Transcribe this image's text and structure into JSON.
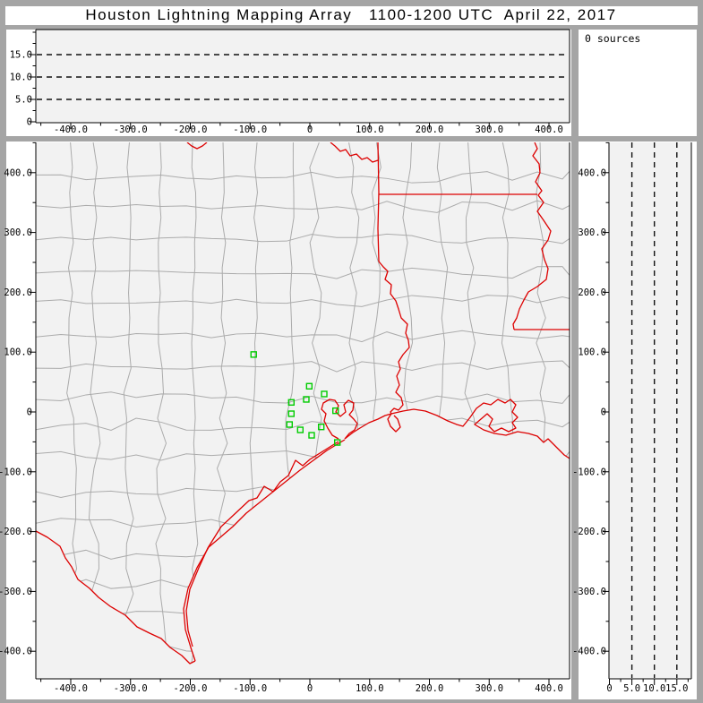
{
  "window": {
    "title": "Houston Lightning Mapping Array   1100-1200 UTC  April 22, 2017"
  },
  "status": {
    "sources_label": "0 sources"
  },
  "colors": {
    "frame": "#a5a5a5",
    "panel_white": "#ffffff",
    "plot_bg": "#f2f2f2",
    "axis": "#000000",
    "county_line": "#ababab",
    "state_border": "#dd0000",
    "station_marker": "#00cc00",
    "grid_dash": "#111111"
  },
  "chart_data": [
    {
      "id": "ew-altitude-panel",
      "type": "scatter",
      "position": "top",
      "description": "altitude (km) vs east-west distance (km), empty - 0 sources",
      "x_tick_values": [
        -400,
        -300,
        -200,
        -100,
        0,
        100,
        200,
        300,
        400
      ],
      "x_tick_labels": [
        "-400.0",
        "-300.0",
        "-200.0",
        "-100.0",
        "0",
        "100.0",
        "200.0",
        "300.0",
        "400.0"
      ],
      "y_tick_values": [
        0,
        5,
        10,
        15
      ],
      "y_tick_labels": [
        "0",
        "5.0",
        "10.0",
        "15.0"
      ],
      "xlim": [
        -458,
        434
      ],
      "ylim": [
        0,
        20.6
      ],
      "minor_x_step": 50,
      "minor_y_step": 2.5,
      "gridlines_y_dashed": [
        5,
        10,
        15
      ],
      "points": []
    },
    {
      "id": "plan-view-map",
      "type": "scatter",
      "position": "main",
      "description": "plan view map, km east-west vs km north-south centered on Houston LMA",
      "x_tick_values": [
        -400,
        -300,
        -200,
        -100,
        0,
        100,
        200,
        300,
        400
      ],
      "x_tick_labels": [
        "-400.0",
        "-300.0",
        "-200.0",
        "-100.0",
        "0",
        "100.0",
        "200.0",
        "300.0",
        "400.0"
      ],
      "y_tick_values": [
        400,
        300,
        200,
        100,
        0,
        -100,
        -200,
        -300,
        -400
      ],
      "y_tick_labels": [
        "400.0",
        "300.0",
        "200.0",
        "100.0",
        "0",
        "-100.0",
        "-200.0",
        "-300.0",
        "-400.0"
      ],
      "xlim": [
        -458,
        434
      ],
      "ylim": [
        -448,
        451
      ],
      "minor_x_step": 50,
      "minor_y_step": 50,
      "marker": "open-green-square",
      "stations_km": [
        [
          -94,
          96
        ],
        [
          -1,
          43
        ],
        [
          24,
          30
        ],
        [
          -6,
          21
        ],
        [
          -31,
          16
        ],
        [
          43,
          2
        ],
        [
          -31,
          -3
        ],
        [
          -34,
          -21
        ],
        [
          19,
          -25
        ],
        [
          -16,
          -30
        ],
        [
          3,
          -39
        ],
        [
          46,
          -51
        ]
      ],
      "overlays": [
        "county-boundaries-gray",
        "state-borders-and-coastline-red"
      ],
      "lightning_points": []
    },
    {
      "id": "ns-altitude-panel",
      "type": "scatter",
      "position": "right",
      "description": "north-south distance (km) vs altitude (km), empty - 0 sources",
      "x_tick_values": [
        0,
        5,
        10,
        15
      ],
      "x_tick_labels": [
        "0",
        "5.0",
        "10.0",
        "15.0"
      ],
      "y_tick_values": [
        400,
        300,
        200,
        100,
        0,
        -100,
        -200,
        -300,
        -400
      ],
      "y_tick_labels": [
        "400.0",
        "300.0",
        "200.0",
        "100.0",
        "0",
        "-100.0",
        "-200.0",
        "-300.0",
        "-400.0"
      ],
      "xlim": [
        0,
        18.2
      ],
      "ylim": [
        -448,
        451
      ],
      "minor_x_step": 2.5,
      "minor_y_step": 50,
      "gridlines_x_dashed": [
        5,
        10,
        15
      ],
      "points": []
    }
  ],
  "map_geometry": {
    "red_paths": [
      {
        "name": "red-river-tx-ok-west",
        "points": [
          [
            209,
            159
          ],
          [
            214,
            163
          ],
          [
            220,
            166
          ],
          [
            226,
            163
          ],
          [
            231,
            159
          ]
        ]
      },
      {
        "name": "red-river-tx-ok-east",
        "points": [
          [
            369,
            159
          ],
          [
            374,
            163
          ],
          [
            380,
            169
          ],
          [
            386,
            167
          ],
          [
            391,
            174
          ],
          [
            398,
            172
          ],
          [
            404,
            178
          ],
          [
            410,
            176
          ],
          [
            416,
            181
          ],
          [
            422,
            179
          ]
        ]
      },
      {
        "name": "tx-ar-border",
        "points": [
          [
            422,
            159
          ],
          [
            423,
            215
          ],
          [
            422,
            255
          ],
          [
            423,
            292
          ]
        ]
      },
      {
        "name": "sabine-river-tx-la",
        "points": [
          [
            423,
            292
          ],
          [
            428,
            298
          ],
          [
            433,
            303
          ],
          [
            430,
            312
          ],
          [
            437,
            318
          ],
          [
            436,
            328
          ],
          [
            442,
            336
          ],
          [
            445,
            345
          ],
          [
            448,
            355
          ],
          [
            455,
            362
          ],
          [
            453,
            372
          ],
          [
            456,
            380
          ],
          [
            457,
            388
          ],
          [
            450,
            396
          ],
          [
            445,
            404
          ],
          [
            447,
            412
          ],
          [
            443,
            420
          ],
          [
            446,
            430
          ],
          [
            442,
            438
          ],
          [
            448,
            444
          ],
          [
            450,
            452
          ],
          [
            445,
            458
          ],
          [
            440,
            456
          ],
          [
            436,
            460
          ],
          [
            437,
            462
          ]
        ]
      },
      {
        "name": "ar-la-border",
        "points": [
          [
            423,
            217
          ],
          [
            600,
            217
          ]
        ]
      },
      {
        "name": "mississippi-river-border",
        "points": [
          [
            597,
            159
          ],
          [
            600,
            166
          ],
          [
            595,
            174
          ],
          [
            602,
            183
          ],
          [
            603,
            193
          ],
          [
            598,
            203
          ],
          [
            605,
            213
          ],
          [
            601,
            218
          ],
          [
            607,
            226
          ],
          [
            600,
            236
          ],
          [
            607,
            246
          ],
          [
            615,
            258
          ],
          [
            612,
            268
          ],
          [
            605,
            278
          ],
          [
            608,
            290
          ],
          [
            612,
            300
          ],
          [
            610,
            312
          ],
          [
            600,
            320
          ],
          [
            590,
            326
          ],
          [
            585,
            335
          ],
          [
            580,
            345
          ],
          [
            577,
            355
          ],
          [
            573,
            362
          ],
          [
            574,
            368
          ]
        ]
      },
      {
        "name": "la-ms-border",
        "points": [
          [
            574,
            368
          ],
          [
            636,
            368
          ]
        ]
      },
      {
        "name": "gulf-coast-east",
        "points": [
          [
            385,
            490
          ],
          [
            394,
            483
          ],
          [
            402,
            478
          ],
          [
            412,
            472
          ],
          [
            422,
            468
          ],
          [
            430,
            464
          ],
          [
            437,
            462
          ],
          [
            450,
            459
          ],
          [
            462,
            457
          ],
          [
            475,
            459
          ],
          [
            488,
            464
          ],
          [
            500,
            470
          ],
          [
            510,
            474
          ],
          [
            517,
            476
          ],
          [
            525,
            466
          ],
          [
            532,
            456
          ],
          [
            540,
            450
          ],
          [
            548,
            452
          ],
          [
            556,
            446
          ],
          [
            564,
            450
          ],
          [
            570,
            446
          ],
          [
            576,
            452
          ],
          [
            572,
            460
          ],
          [
            578,
            466
          ],
          [
            572,
            472
          ],
          [
            576,
            478
          ],
          [
            568,
            482
          ],
          [
            560,
            478
          ],
          [
            552,
            482
          ],
          [
            546,
            476
          ],
          [
            550,
            468
          ],
          [
            544,
            462
          ],
          [
            537,
            468
          ],
          [
            530,
            474
          ],
          [
            540,
            480
          ],
          [
            552,
            484
          ],
          [
            565,
            486
          ],
          [
            578,
            482
          ],
          [
            590,
            484
          ],
          [
            600,
            487
          ],
          [
            607,
            494
          ],
          [
            612,
            490
          ],
          [
            618,
            496
          ],
          [
            625,
            503
          ],
          [
            630,
            508
          ],
          [
            636,
            512
          ]
        ]
      },
      {
        "name": "galveston-bay",
        "points": [
          [
            385,
            490
          ],
          [
            390,
            484
          ],
          [
            396,
            480
          ],
          [
            399,
            473
          ],
          [
            395,
            468
          ],
          [
            390,
            463
          ],
          [
            394,
            458
          ],
          [
            395,
            450
          ],
          [
            389,
            447
          ],
          [
            384,
            452
          ],
          [
            386,
            460
          ],
          [
            380,
            465
          ],
          [
            375,
            460
          ],
          [
            378,
            453
          ],
          [
            374,
            447
          ],
          [
            368,
            446
          ],
          [
            361,
            450
          ],
          [
            359,
            457
          ],
          [
            364,
            462
          ],
          [
            362,
            470
          ],
          [
            366,
            478
          ],
          [
            371,
            486
          ],
          [
            378,
            490
          ]
        ]
      },
      {
        "name": "barrier-island-coast",
        "points": [
          [
            385,
            491
          ],
          [
            380,
            494
          ],
          [
            365,
            503
          ],
          [
            350,
            514
          ],
          [
            335,
            525
          ],
          [
            320,
            537
          ],
          [
            305,
            549
          ],
          [
            290,
            561
          ],
          [
            275,
            573
          ],
          [
            260,
            588
          ],
          [
            246,
            600
          ],
          [
            233,
            611
          ],
          [
            220,
            634
          ],
          [
            210,
            657
          ],
          [
            205,
            680
          ],
          [
            207,
            703
          ],
          [
            213,
            723
          ],
          [
            218,
            738
          ]
        ]
      },
      {
        "name": "inner-shoreline",
        "points": [
          [
            378,
            493
          ],
          [
            362,
            503
          ],
          [
            346,
            513
          ],
          [
            338,
            520
          ],
          [
            330,
            514
          ],
          [
            322,
            531
          ],
          [
            313,
            538
          ],
          [
            305,
            549
          ],
          [
            295,
            543
          ],
          [
            287,
            556
          ],
          [
            278,
            559
          ],
          [
            262,
            574
          ],
          [
            247,
            588
          ],
          [
            232,
            612
          ],
          [
            222,
            634
          ],
          [
            212,
            658
          ],
          [
            208,
            682
          ],
          [
            210,
            704
          ],
          [
            215,
            722
          ]
        ]
      },
      {
        "name": "rio-grande-border",
        "points": [
          [
            40,
            593
          ],
          [
            53,
            600
          ],
          [
            67,
            610
          ],
          [
            73,
            623
          ],
          [
            80,
            633
          ],
          [
            87,
            647
          ],
          [
            100,
            657
          ],
          [
            110,
            667
          ],
          [
            123,
            677
          ],
          [
            140,
            687
          ],
          [
            153,
            700
          ],
          [
            167,
            707
          ],
          [
            180,
            713
          ],
          [
            190,
            723
          ],
          [
            203,
            732
          ],
          [
            212,
            741
          ],
          [
            218,
            738
          ]
        ]
      },
      {
        "name": "sabine-lake",
        "points": [
          [
            437,
            462
          ],
          [
            433,
            468
          ],
          [
            436,
            476
          ],
          [
            442,
            482
          ],
          [
            447,
            477
          ],
          [
            444,
            468
          ],
          [
            440,
            464
          ]
        ]
      }
    ],
    "land_clip": [
      [
        40,
        159
      ],
      [
        636,
        159
      ],
      [
        636,
        512
      ],
      [
        630,
        508
      ],
      [
        625,
        503
      ],
      [
        618,
        496
      ],
      [
        612,
        490
      ],
      [
        607,
        494
      ],
      [
        600,
        487
      ],
      [
        590,
        484
      ],
      [
        578,
        482
      ],
      [
        565,
        486
      ],
      [
        552,
        484
      ],
      [
        540,
        480
      ],
      [
        530,
        474
      ],
      [
        517,
        476
      ],
      [
        510,
        474
      ],
      [
        500,
        470
      ],
      [
        488,
        464
      ],
      [
        475,
        459
      ],
      [
        462,
        457
      ],
      [
        450,
        459
      ],
      [
        437,
        462
      ],
      [
        430,
        464
      ],
      [
        422,
        468
      ],
      [
        412,
        472
      ],
      [
        402,
        478
      ],
      [
        394,
        483
      ],
      [
        388,
        488
      ],
      [
        385,
        490
      ],
      [
        380,
        494
      ],
      [
        365,
        503
      ],
      [
        350,
        514
      ],
      [
        335,
        525
      ],
      [
        320,
        537
      ],
      [
        305,
        549
      ],
      [
        290,
        561
      ],
      [
        275,
        573
      ],
      [
        260,
        588
      ],
      [
        246,
        600
      ],
      [
        233,
        611
      ],
      [
        220,
        634
      ],
      [
        210,
        657
      ],
      [
        205,
        680
      ],
      [
        207,
        703
      ],
      [
        213,
        723
      ],
      [
        218,
        738
      ],
      [
        212,
        741
      ],
      [
        203,
        732
      ],
      [
        190,
        723
      ],
      [
        180,
        713
      ],
      [
        167,
        707
      ],
      [
        153,
        700
      ],
      [
        140,
        687
      ],
      [
        123,
        677
      ],
      [
        110,
        667
      ],
      [
        100,
        657
      ],
      [
        87,
        647
      ],
      [
        80,
        633
      ],
      [
        73,
        623
      ],
      [
        67,
        610
      ],
      [
        53,
        600
      ],
      [
        40,
        593
      ]
    ],
    "county_mesh": {
      "verticals": 16,
      "horizontals": 16,
      "regular_zone_amplitude": 3,
      "irregular_zone_amplitude": 7
    }
  }
}
